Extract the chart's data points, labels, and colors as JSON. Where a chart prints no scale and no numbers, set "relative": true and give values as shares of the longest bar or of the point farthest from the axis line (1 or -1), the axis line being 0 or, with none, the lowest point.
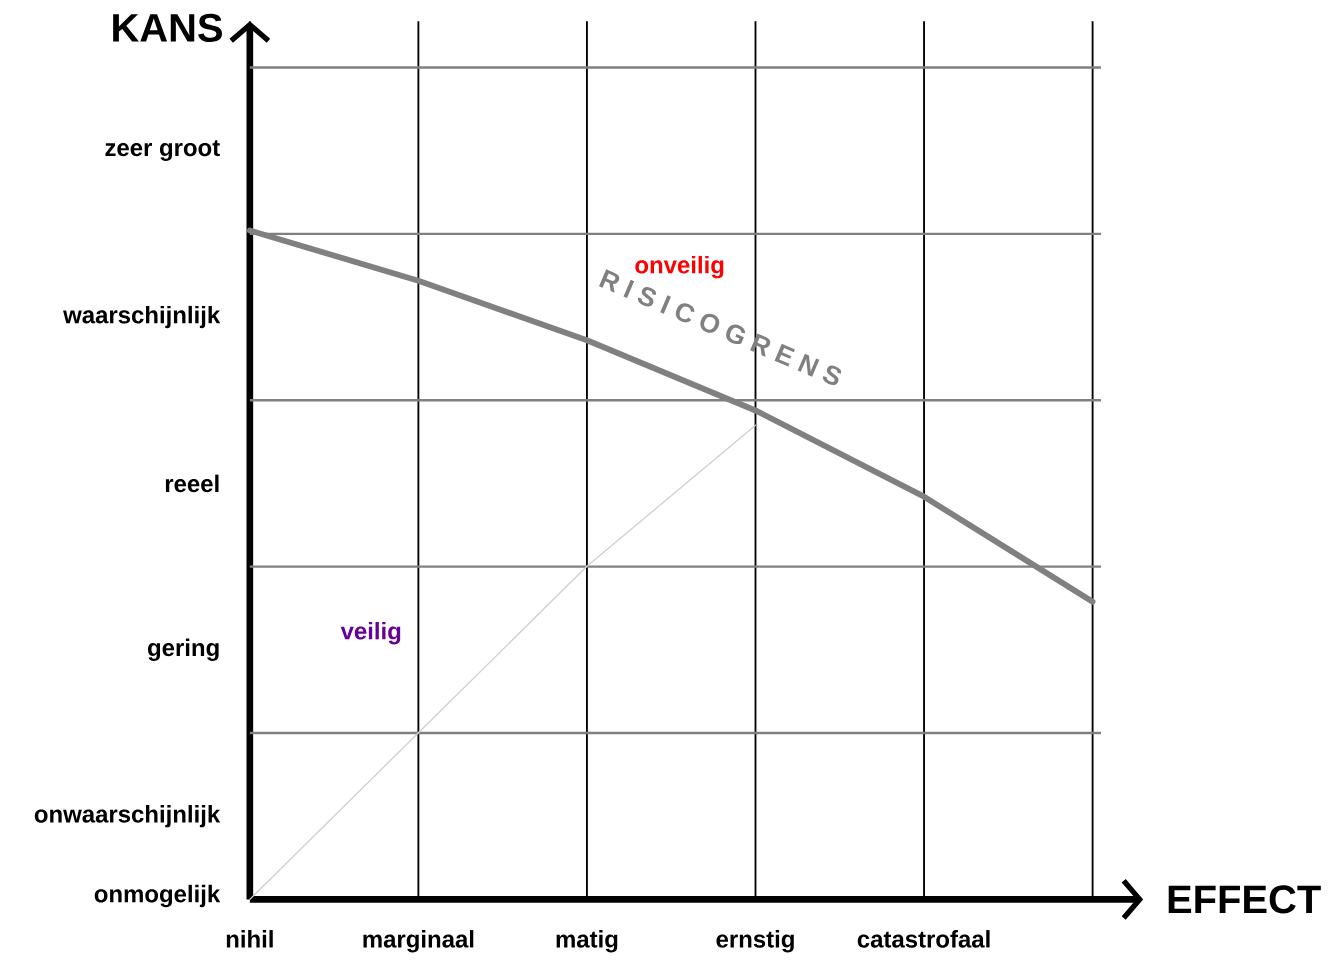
{
  "chart_data": {
    "type": "line",
    "xlabel": "EFFECT",
    "ylabel": "KANS",
    "relative": true,
    "categories": [
      "nihil",
      "marginaal",
      "matig",
      "ernstig",
      "catastrofaal",
      null
    ],
    "grid": true,
    "series": [
      {
        "name": "R I S I C O G R E N S",
        "color": "#808080",
        "values": [
          1,
          0.925,
          0.836,
          0.731,
          0.602,
          0.445
        ]
      },
      {
        "color": "#d0d0d0",
        "values": [
          0,
          0.249,
          0.498,
          0.709,
          null,
          null
        ]
      }
    ],
    "annotations": [
      "onveilig",
      "veilig",
      "zeer groot",
      "waarschijnlijk",
      "reeel",
      "gering",
      "onwaarschijnlijk",
      "onmogelijk"
    ]
  }
}
